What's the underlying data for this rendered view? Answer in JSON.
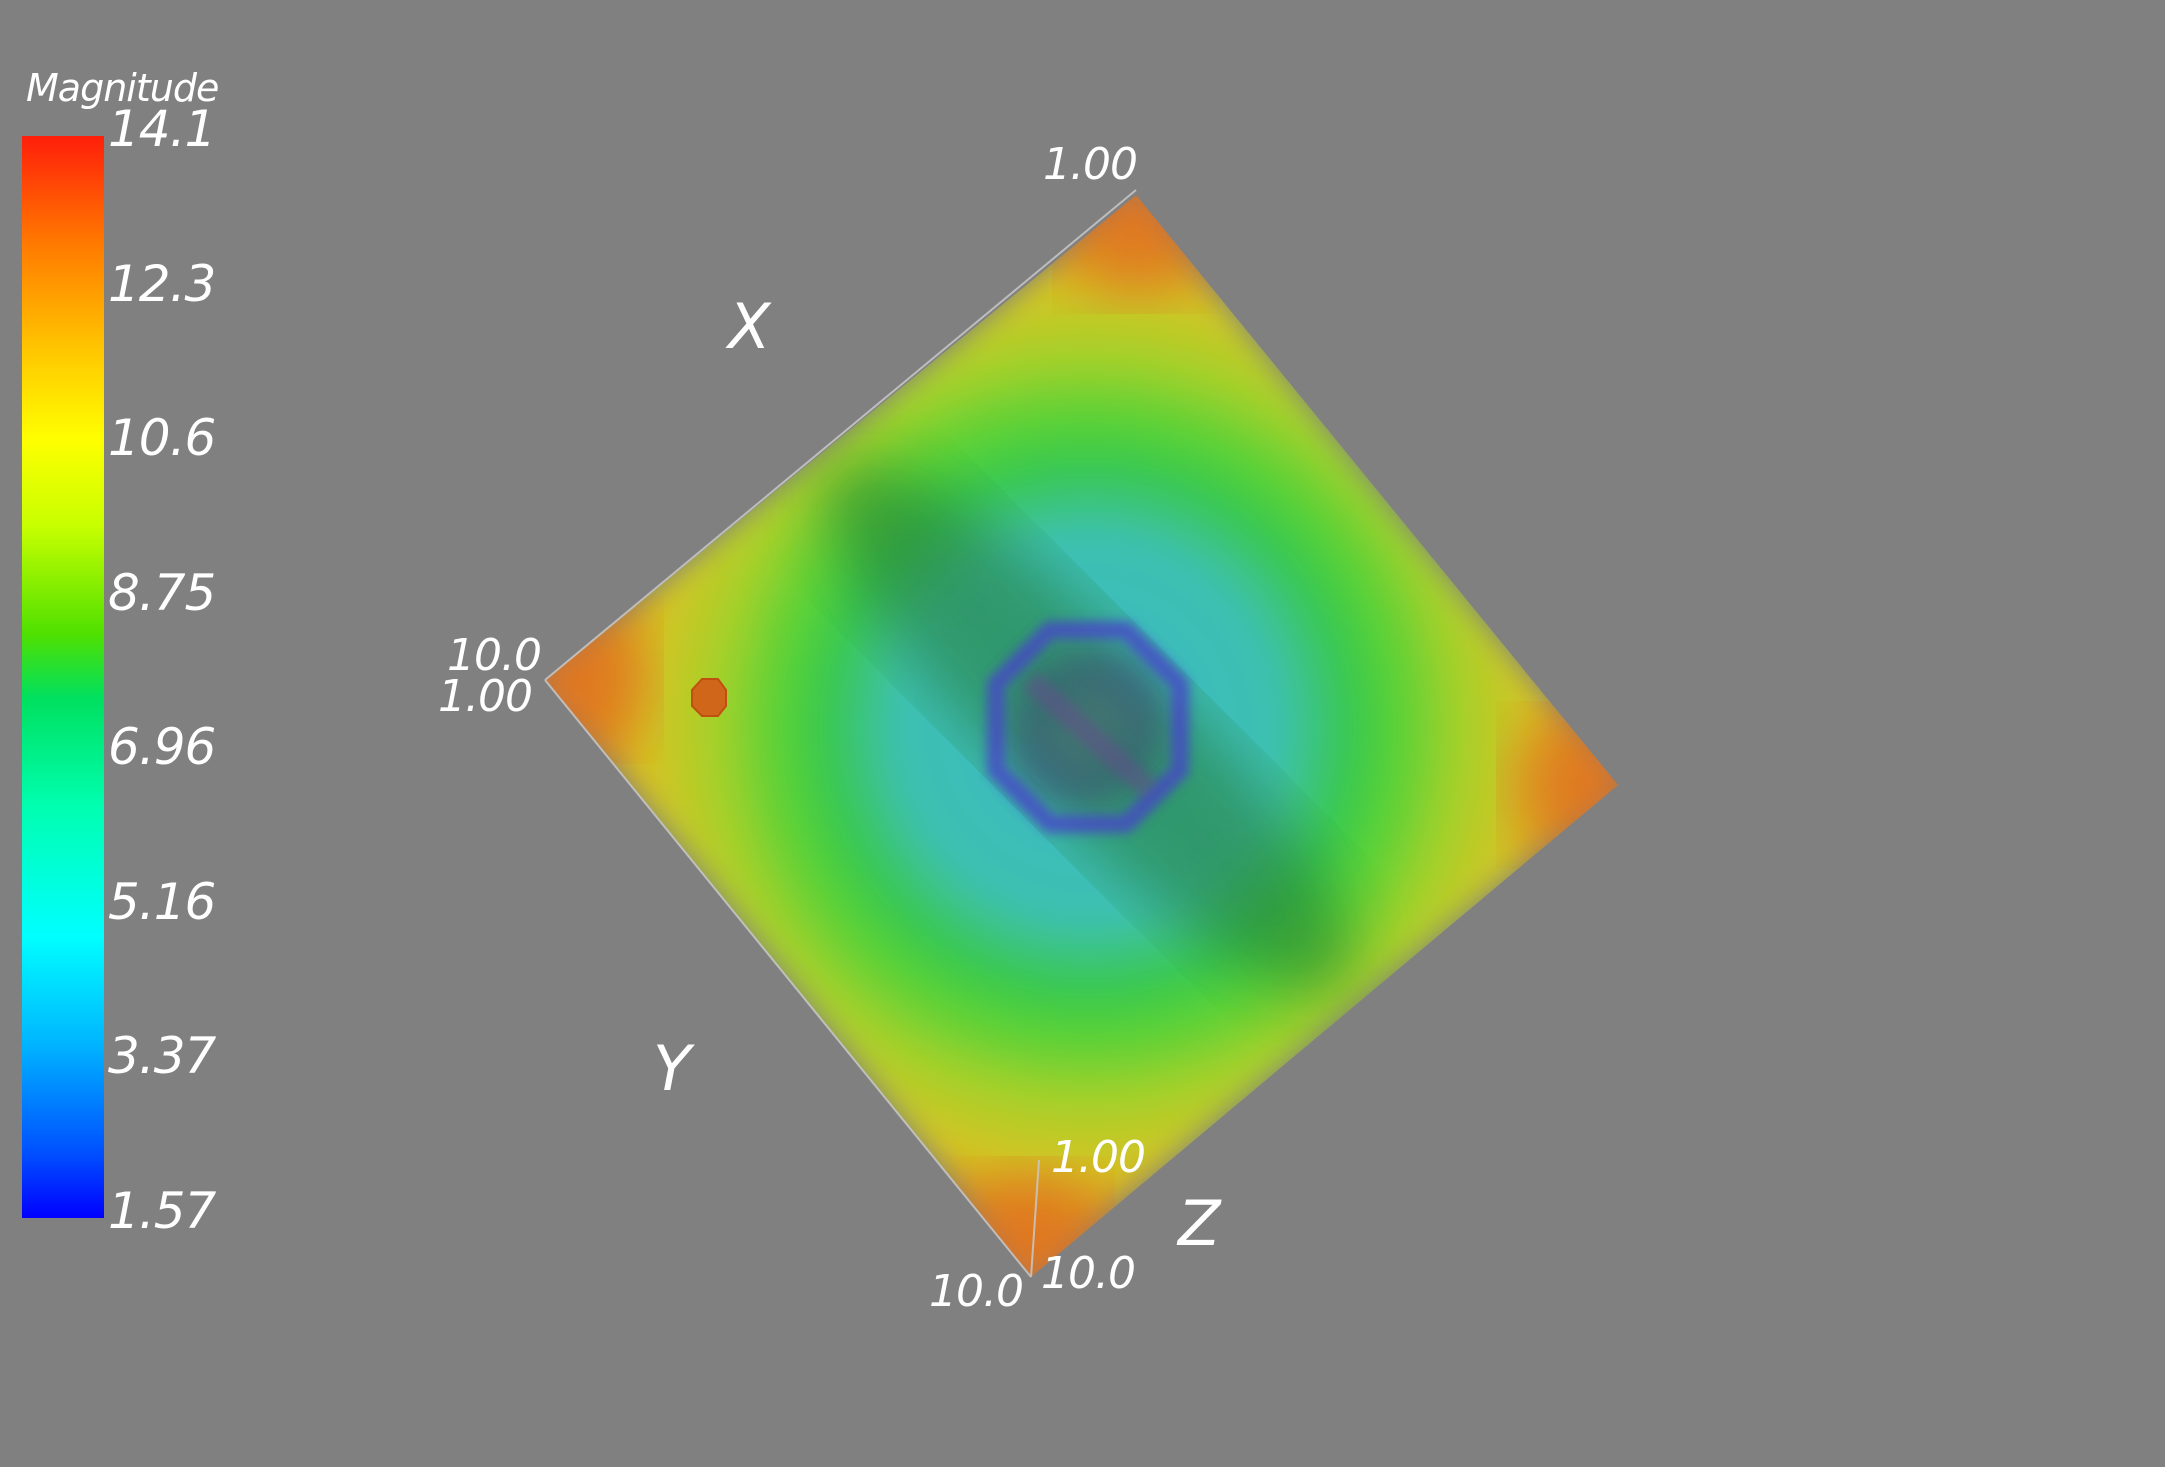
{
  "scalar_bar": {
    "title": "Magnitude",
    "ticks": [
      "14.1",
      "12.3",
      "10.6",
      "8.75",
      "6.96",
      "5.16",
      "3.37",
      "1.57"
    ],
    "colormap": [
      "#ff0000",
      "#ff8000",
      "#ffff00",
      "#00e000",
      "#00ffff",
      "#0000ff"
    ]
  },
  "axes": {
    "x_title": "X",
    "y_title": "Y",
    "z_title": "Z",
    "top_corner_label": "1.00",
    "left_corner_label_upper": "10.0",
    "left_corner_label_lower": "1.00",
    "z_axis_top_label": "1.00",
    "bottom_corner_label_left": "10.0",
    "bottom_corner_label_right": "10.0"
  },
  "colors": {
    "background": "#808080",
    "text": "#ffffff",
    "outline": "#c8c8c8"
  }
}
